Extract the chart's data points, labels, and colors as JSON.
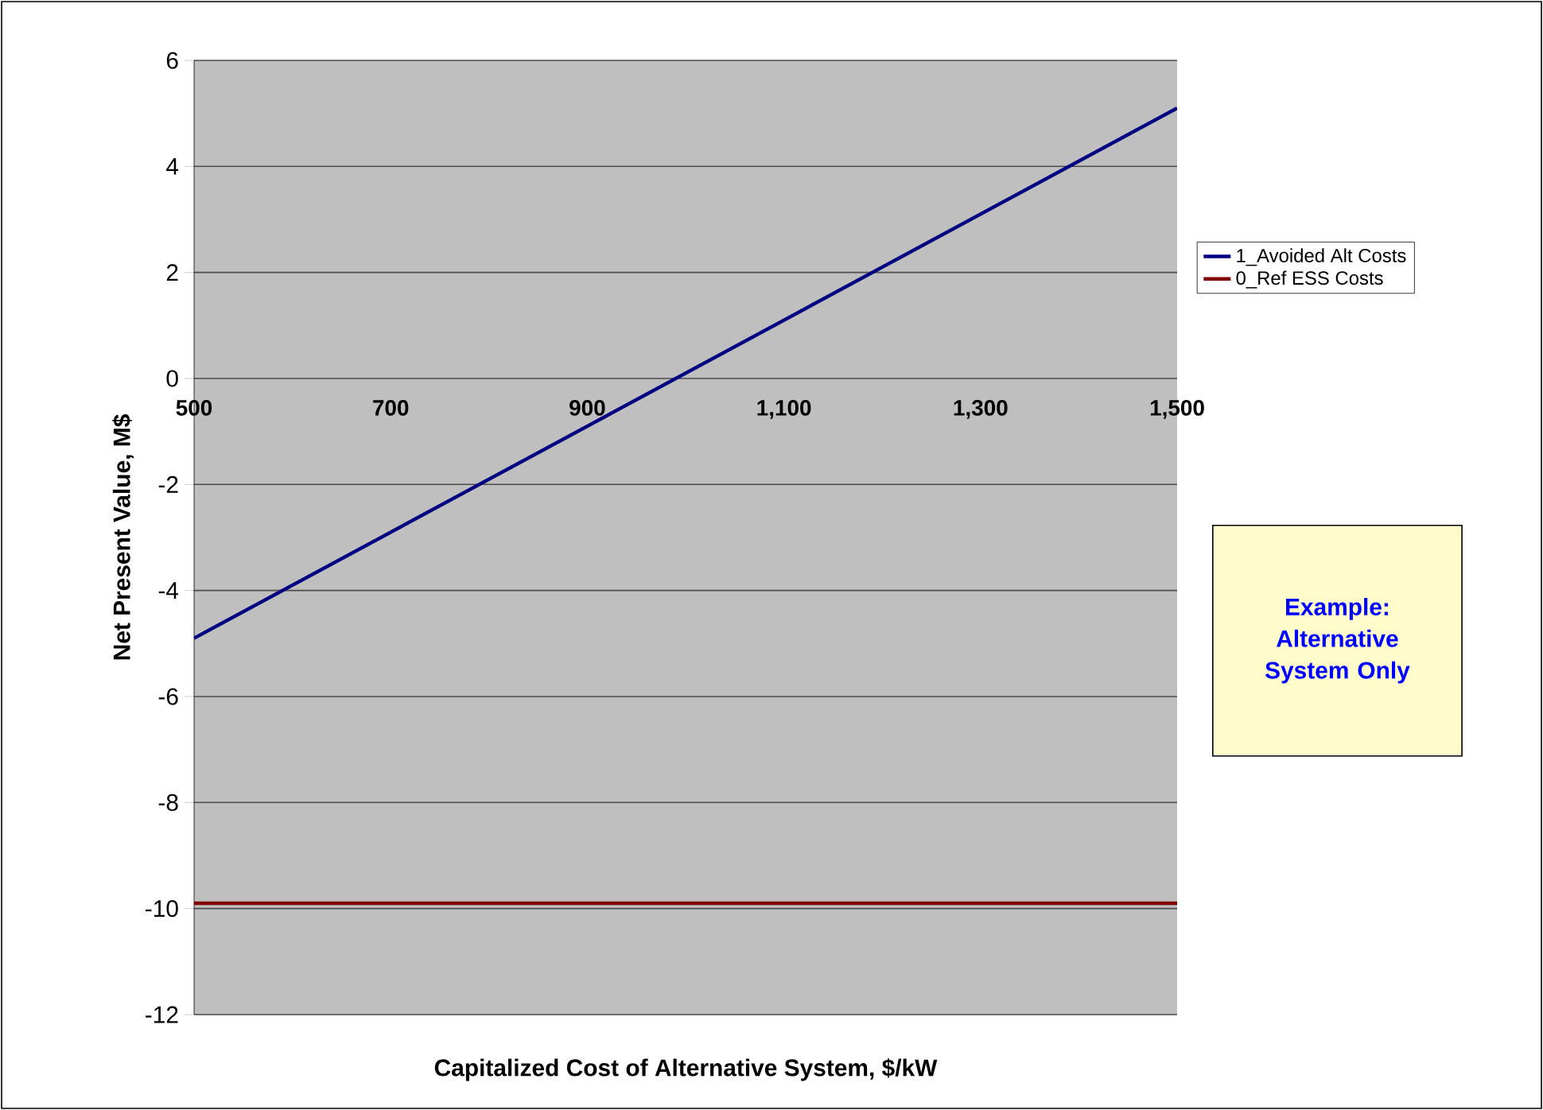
{
  "chart_data": {
    "type": "line",
    "xlabel": "Capitalized Cost of Alternative System, $/kW",
    "ylabel": "Net Present Value, M$",
    "x": [
      500,
      1500
    ],
    "series": [
      {
        "name": "1_Avoided Alt Costs",
        "color": "#000080",
        "values": [
          -4.9,
          5.1
        ]
      },
      {
        "name": "0_Ref ESS Costs",
        "color": "#800000",
        "values": [
          -9.9,
          -9.9
        ]
      }
    ],
    "xlim": [
      500,
      1500
    ],
    "ylim": [
      -12,
      6
    ],
    "xticks": [
      {
        "value": 500,
        "label": "500"
      },
      {
        "value": 700,
        "label": "700"
      },
      {
        "value": 900,
        "label": "900"
      },
      {
        "value": 1100,
        "label": "1,100"
      },
      {
        "value": 1300,
        "label": "1,300"
      },
      {
        "value": 1500,
        "label": "1,500"
      }
    ],
    "yticks": [
      -12,
      -10,
      -8,
      -6,
      -4,
      -2,
      0,
      2,
      4,
      6
    ],
    "grid": "y",
    "legend": "right",
    "marker": "none",
    "line_style": "solid",
    "annotations": [
      "Example: Alternative System Only"
    ]
  }
}
